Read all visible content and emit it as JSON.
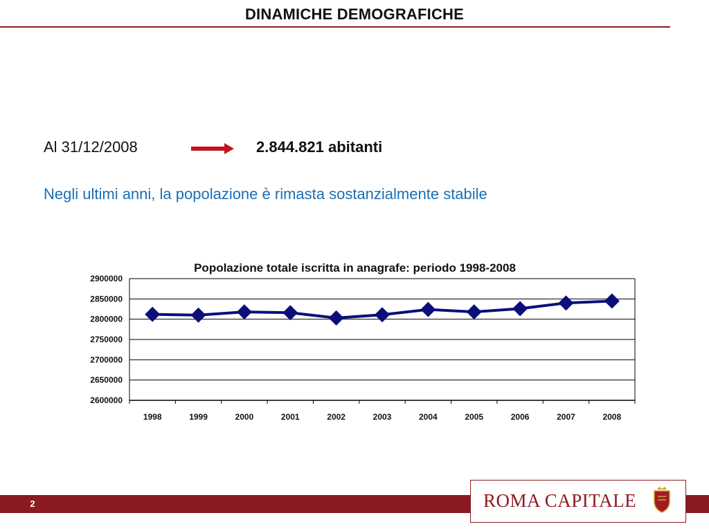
{
  "header": {
    "title": "DINAMICHE DEMOGRAFICHE"
  },
  "summary": {
    "date_label": "Al 31/12/2008",
    "arrow_icon": "right-arrow-icon",
    "population_value": "2.844.821 abitanti",
    "note": "Negli ultimi anni, la popolazione è rimasta sostanzialmente stabile"
  },
  "colors": {
    "accent": "#8b1a22",
    "note_text": "#1a6fb5",
    "series": "#0a0f7a"
  },
  "chart_data": {
    "type": "line",
    "title": "Popolazione totale iscritta in anagrafe: periodo 1998-2008",
    "xlabel": "",
    "ylabel": "",
    "categories": [
      "1998",
      "1999",
      "2000",
      "2001",
      "2002",
      "2003",
      "2004",
      "2005",
      "2006",
      "2007",
      "2008"
    ],
    "series": [
      {
        "values": [
          2812000,
          2810000,
          2818000,
          2816000,
          2803000,
          2811000,
          2824000,
          2818000,
          2826000,
          2840000,
          2844821
        ]
      }
    ],
    "ylim": [
      2600000,
      2900000
    ],
    "yticks": [
      "2900000",
      "2850000",
      "2800000",
      "2750000",
      "2700000",
      "2650000",
      "2600000"
    ],
    "grid": true,
    "legend": "none",
    "marker": "diamond"
  },
  "footer": {
    "page_number": "2",
    "logo_text": "ROMA CAPITALE",
    "crest_icon": "roma-crest-icon"
  }
}
